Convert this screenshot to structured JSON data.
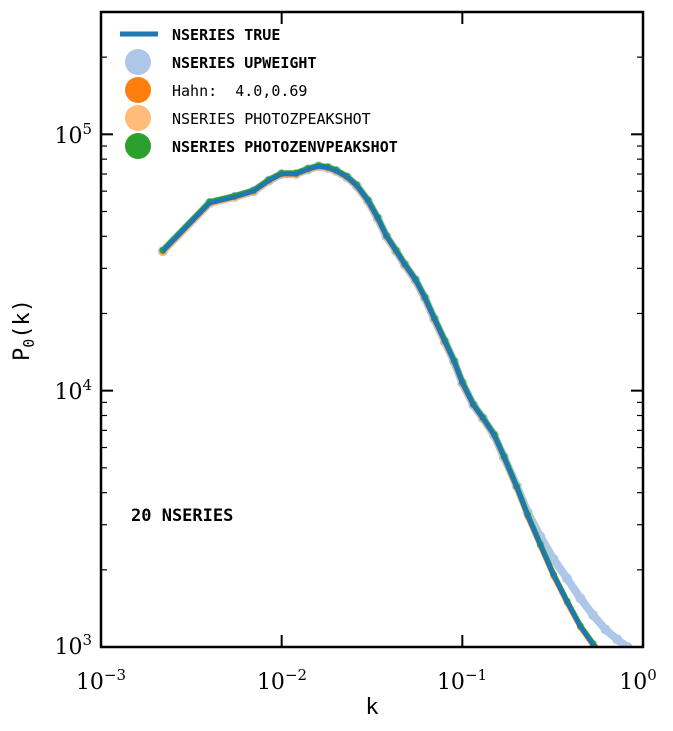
{
  "chart_data": {
    "type": "line",
    "xscale": "log",
    "yscale": "log",
    "xlim": [
      0.001,
      1.0
    ],
    "ylim": [
      1000,
      300000
    ],
    "xlabel": "k",
    "ylabel_base": "P",
    "ylabel_sub": "0",
    "ylabel_arg": "(k)",
    "annotation": "20 NSERIES",
    "x_ticks": [
      {
        "base": "10",
        "exp": "−3",
        "value": 0.001
      },
      {
        "base": "10",
        "exp": "−2",
        "value": 0.01
      },
      {
        "base": "10",
        "exp": "−1",
        "value": 0.1
      },
      {
        "base": "10",
        "exp": "0",
        "value": 1.0
      }
    ],
    "y_ticks": [
      {
        "base": "10",
        "exp": "3",
        "value": 1000
      },
      {
        "base": "10",
        "exp": "4",
        "value": 10000
      },
      {
        "base": "10",
        "exp": "5",
        "value": 100000
      }
    ],
    "legend_position": "top-left",
    "series": [
      {
        "name": "NSERIES TRUE",
        "style": "line",
        "color": "#1f77b4",
        "x": [
          0.0022,
          0.004,
          0.0055,
          0.007,
          0.0085,
          0.01,
          0.012,
          0.014,
          0.016,
          0.018,
          0.02,
          0.023,
          0.026,
          0.03,
          0.034,
          0.038,
          0.043,
          0.048,
          0.055,
          0.062,
          0.07,
          0.08,
          0.09,
          0.1,
          0.115,
          0.13,
          0.15,
          0.17,
          0.2,
          0.23,
          0.27,
          0.32,
          0.38,
          0.45,
          0.53,
          0.6
        ],
        "y": [
          35000,
          54000,
          57000,
          60000,
          66000,
          70000,
          70000,
          73000,
          75000,
          74000,
          72000,
          68000,
          63000,
          55000,
          47000,
          40000,
          35000,
          31000,
          27000,
          23000,
          19000,
          15500,
          13000,
          10700,
          8800,
          7800,
          6700,
          5500,
          4200,
          3250,
          2500,
          1900,
          1500,
          1200,
          1020,
          900
        ]
      },
      {
        "name": "NSERIES UPWEIGHT",
        "style": "marker",
        "color": "#aec7e8",
        "x": [
          0.0022,
          0.004,
          0.0055,
          0.007,
          0.0085,
          0.01,
          0.012,
          0.014,
          0.016,
          0.018,
          0.02,
          0.023,
          0.026,
          0.03,
          0.034,
          0.038,
          0.043,
          0.048,
          0.055,
          0.062,
          0.07,
          0.08,
          0.09,
          0.1,
          0.115,
          0.13,
          0.15,
          0.17,
          0.2,
          0.23,
          0.27,
          0.32,
          0.38,
          0.45,
          0.53,
          0.62,
          0.72,
          0.82
        ],
        "y": [
          35000,
          54000,
          57000,
          60000,
          66000,
          70000,
          70000,
          73000,
          75000,
          74000,
          72000,
          68000,
          63000,
          55000,
          47000,
          40000,
          35000,
          31000,
          27000,
          23000,
          19000,
          15500,
          13000,
          10700,
          8800,
          7800,
          6700,
          5500,
          4250,
          3350,
          2700,
          2200,
          1850,
          1550,
          1330,
          1170,
          1070,
          1000
        ]
      },
      {
        "name": "Hahn:  4.0,0.69",
        "style": "marker",
        "color": "#ff7f0e",
        "x": [
          0.0022,
          0.004,
          0.0055,
          0.007,
          0.0085,
          0.01,
          0.012,
          0.014,
          0.016,
          0.018,
          0.02,
          0.023,
          0.026,
          0.03,
          0.034,
          0.038,
          0.043,
          0.048,
          0.055,
          0.062,
          0.07,
          0.08,
          0.09,
          0.1,
          0.115,
          0.13,
          0.15,
          0.17,
          0.2,
          0.23,
          0.27,
          0.32,
          0.38,
          0.45,
          0.53,
          0.6
        ],
        "y": [
          35000,
          54000,
          57000,
          60000,
          66000,
          70000,
          70000,
          73000,
          75000,
          74000,
          72000,
          68000,
          63000,
          55000,
          47000,
          40000,
          35000,
          31000,
          27000,
          23000,
          19000,
          15500,
          13000,
          10700,
          8800,
          7800,
          6700,
          5500,
          4200,
          3250,
          2500,
          1900,
          1500,
          1200,
          1020,
          900
        ]
      },
      {
        "name": "NSERIES PHOTOZPEAKSHOT",
        "style": "marker",
        "color": "#ffbb78",
        "x": [
          0.0022,
          0.004,
          0.0055,
          0.007,
          0.0085,
          0.01,
          0.012,
          0.014,
          0.016,
          0.018,
          0.02,
          0.023,
          0.026,
          0.03,
          0.034,
          0.038,
          0.043,
          0.048,
          0.055,
          0.062,
          0.07,
          0.08,
          0.09,
          0.1,
          0.115,
          0.13,
          0.15,
          0.17,
          0.2,
          0.23,
          0.27,
          0.32,
          0.38,
          0.45,
          0.53,
          0.6
        ],
        "y": [
          34500,
          53500,
          56500,
          59500,
          65500,
          69500,
          69500,
          72500,
          74500,
          73500,
          71500,
          67500,
          62500,
          54500,
          46500,
          39700,
          34700,
          30700,
          26800,
          22800,
          18800,
          15300,
          12900,
          10600,
          8750,
          7750,
          6650,
          5450,
          4150,
          3200,
          2470,
          1880,
          1480,
          1190,
          1010,
          890
        ]
      },
      {
        "name": "NSERIES PHOTOZENVPEAKSHOT",
        "style": "marker",
        "color": "#2ca02c",
        "x": [
          0.0022,
          0.004,
          0.0055,
          0.007,
          0.0085,
          0.01,
          0.012,
          0.014,
          0.016,
          0.018,
          0.02,
          0.023,
          0.026,
          0.03,
          0.034,
          0.038,
          0.043,
          0.048,
          0.055,
          0.062,
          0.07,
          0.08,
          0.09,
          0.1,
          0.115,
          0.13,
          0.15,
          0.17,
          0.2,
          0.23,
          0.27,
          0.32,
          0.38,
          0.45,
          0.53,
          0.6
        ],
        "y": [
          35300,
          54500,
          57500,
          60500,
          66500,
          70500,
          70500,
          73500,
          75500,
          74500,
          72500,
          68500,
          63500,
          55500,
          47500,
          40300,
          35300,
          31200,
          27200,
          23200,
          19200,
          15700,
          13100,
          10800,
          8850,
          7850,
          6750,
          5550,
          4230,
          3280,
          2520,
          1920,
          1510,
          1210,
          1030,
          910
        ]
      }
    ]
  }
}
